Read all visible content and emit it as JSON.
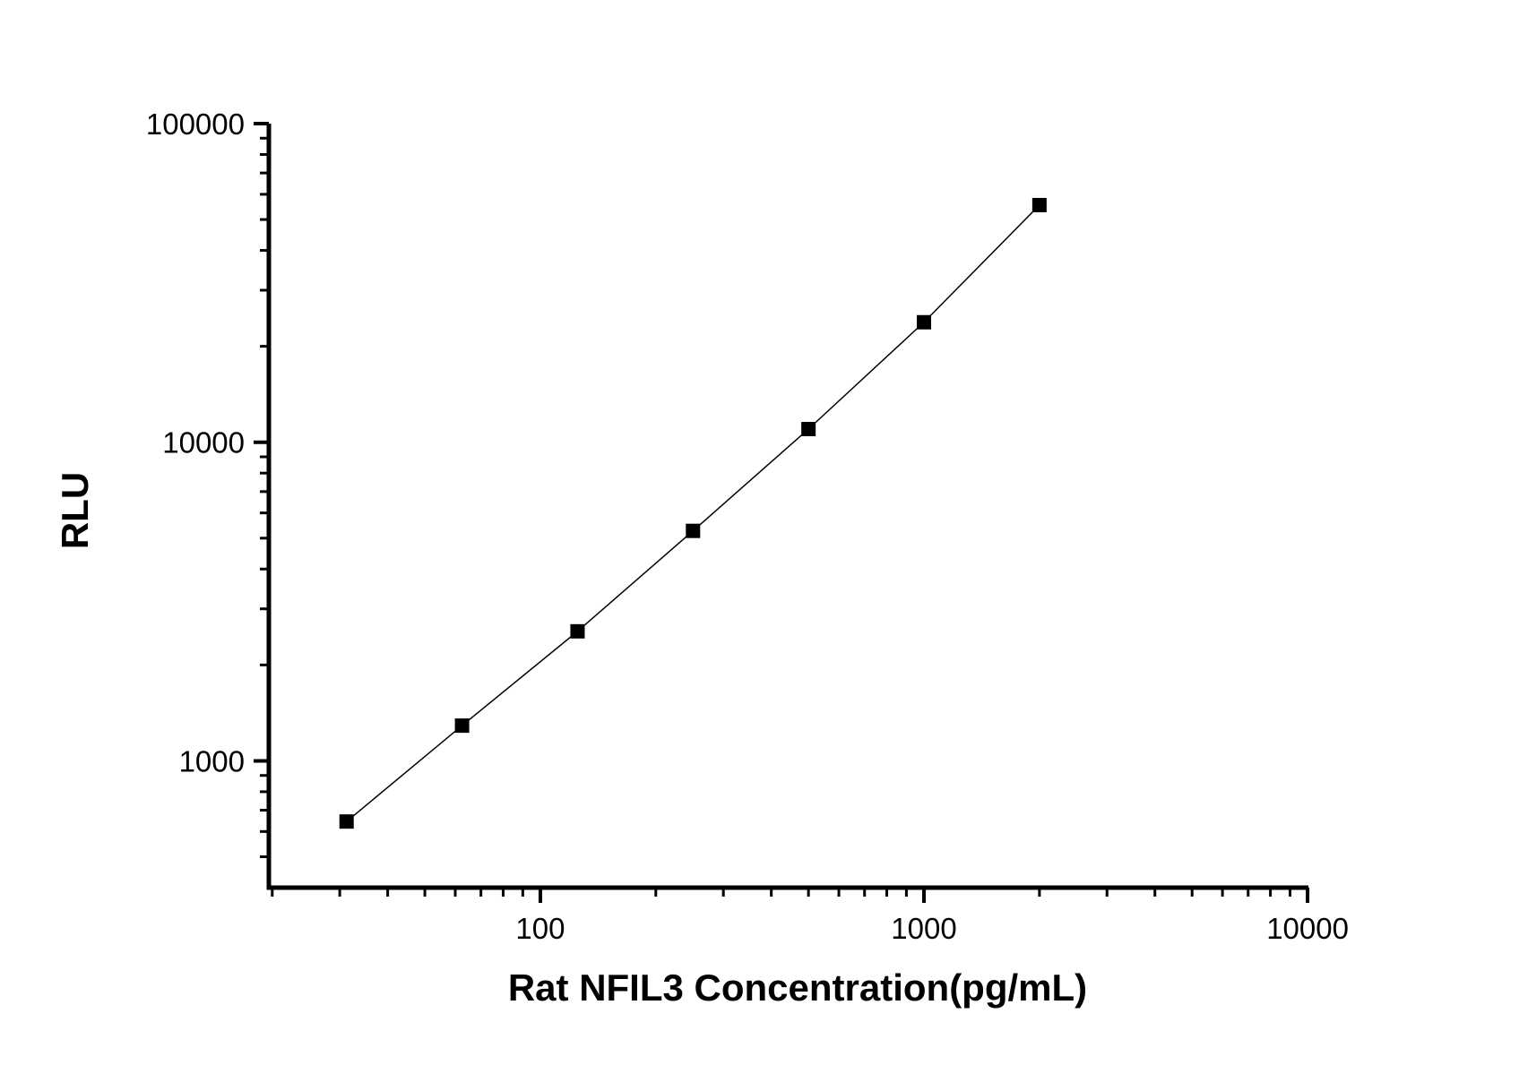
{
  "chart_data": {
    "type": "line",
    "subtype": "line+symbol standard curve",
    "title": "",
    "xlabel": "Rat NFIL3 Concentration(pg/mL)",
    "ylabel": "RLU",
    "x_scale": "log",
    "y_scale": "log",
    "xlim": [
      19.6,
      10050
    ],
    "ylim": [
      400,
      100000
    ],
    "x": [
      31.25,
      62.5,
      125,
      250,
      500,
      1000,
      2000
    ],
    "y": [
      645,
      1290,
      2550,
      5270,
      11000,
      23800,
      55500
    ],
    "x_major_ticks": {
      "values": [
        100,
        1000,
        10000
      ],
      "labels": [
        "100",
        "1000",
        "10000"
      ]
    },
    "x_minor_ticks": [
      20,
      30,
      40,
      50,
      60,
      70,
      80,
      90,
      200,
      300,
      400,
      500,
      600,
      700,
      800,
      900,
      2000,
      3000,
      4000,
      5000,
      6000,
      7000,
      8000,
      9000
    ],
    "y_major_ticks": {
      "values": [
        1000,
        10000,
        100000
      ],
      "labels": [
        "1000",
        "10000",
        "100000"
      ]
    },
    "y_minor_ticks": [
      500,
      600,
      700,
      800,
      900,
      2000,
      3000,
      4000,
      5000,
      6000,
      7000,
      8000,
      9000,
      20000,
      30000,
      40000,
      50000,
      60000,
      70000,
      80000,
      90000
    ],
    "grid": false,
    "legend": false,
    "marker": "filled-square",
    "marker_size_px": 16,
    "colors": {
      "background": "#ffffff",
      "axis": "#000000",
      "line": "#000000",
      "marker": "#000000",
      "text": "#000000"
    }
  }
}
